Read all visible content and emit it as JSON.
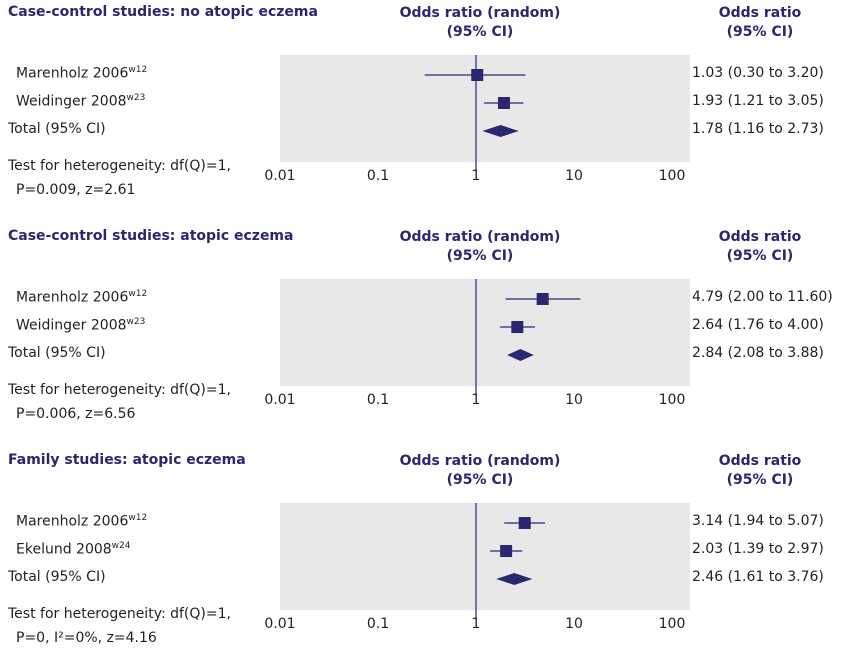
{
  "colors": {
    "marker": "#2b2670",
    "panel_bg": "#e8e8e8",
    "header": "#2b2670",
    "text": "#231f20"
  },
  "chart_data": [
    {
      "type": "forest",
      "title": "Case-control studies: no atopic eczema",
      "plot_header": [
        "Odds ratio (random)",
        "(95% CI)"
      ],
      "value_header": [
        "Odds ratio",
        "(95% CI)"
      ],
      "x_scale": "log",
      "xlim": [
        0.01,
        100
      ],
      "x_ticks": [
        "0.01",
        "0.1",
        "1",
        "10",
        "100"
      ],
      "studies": [
        {
          "name": "Marenholz 2006",
          "ref": "w12",
          "or": 1.03,
          "lo": 0.3,
          "hi": 3.2,
          "label": "1.03 (0.30 to 3.20)"
        },
        {
          "name": "Weidinger 2008",
          "ref": "w23",
          "or": 1.93,
          "lo": 1.21,
          "hi": 3.05,
          "label": "1.93 (1.21 to 3.05)"
        }
      ],
      "total": {
        "name": "Total (95% CI)",
        "or": 1.78,
        "lo": 1.16,
        "hi": 2.73,
        "label": "1.78 (1.16 to 2.73)"
      },
      "footnote": [
        "Test for heterogeneity: df(Q)=1,",
        "P=0.009, z=2.61"
      ]
    },
    {
      "type": "forest",
      "title": "Case-control studies: atopic eczema",
      "plot_header": [
        "Odds ratio (random)",
        "(95% CI)"
      ],
      "value_header": [
        "Odds ratio",
        "(95% CI)"
      ],
      "x_scale": "log",
      "xlim": [
        0.01,
        100
      ],
      "x_ticks": [
        "0.01",
        "0.1",
        "1",
        "10",
        "100"
      ],
      "studies": [
        {
          "name": "Marenholz 2006",
          "ref": "w12",
          "or": 4.79,
          "lo": 2.0,
          "hi": 11.6,
          "label": "4.79 (2.00 to 11.60)"
        },
        {
          "name": "Weidinger 2008",
          "ref": "w23",
          "or": 2.64,
          "lo": 1.76,
          "hi": 4.0,
          "label": "2.64 (1.76 to 4.00)"
        }
      ],
      "total": {
        "name": "Total (95% CI)",
        "or": 2.84,
        "lo": 2.08,
        "hi": 3.88,
        "label": "2.84 (2.08 to 3.88)"
      },
      "footnote": [
        "Test for heterogeneity: df(Q)=1,",
        "P=0.006, z=6.56"
      ]
    },
    {
      "type": "forest",
      "title": "Family studies: atopic eczema",
      "plot_header": [
        "Odds ratio (random)",
        "(95% CI)"
      ],
      "value_header": [
        "Odds ratio",
        "(95% CI)"
      ],
      "x_scale": "log",
      "xlim": [
        0.01,
        100
      ],
      "x_ticks": [
        "0.01",
        "0.1",
        "1",
        "10",
        "100"
      ],
      "studies": [
        {
          "name": "Marenholz 2006",
          "ref": "w12",
          "or": 3.14,
          "lo": 1.94,
          "hi": 5.07,
          "label": "3.14 (1.94 to 5.07)"
        },
        {
          "name": "Ekelund 2008",
          "ref": "w24",
          "or": 2.03,
          "lo": 1.39,
          "hi": 2.97,
          "label": "2.03 (1.39 to 2.97)"
        }
      ],
      "total": {
        "name": "Total (95% CI)",
        "or": 2.46,
        "lo": 1.61,
        "hi": 3.76,
        "label": "2.46 (1.61 to 3.76)"
      },
      "footnote": [
        "Test for heterogeneity: df(Q)=1,",
        "P=0, I²=0%, z=4.16"
      ]
    }
  ]
}
